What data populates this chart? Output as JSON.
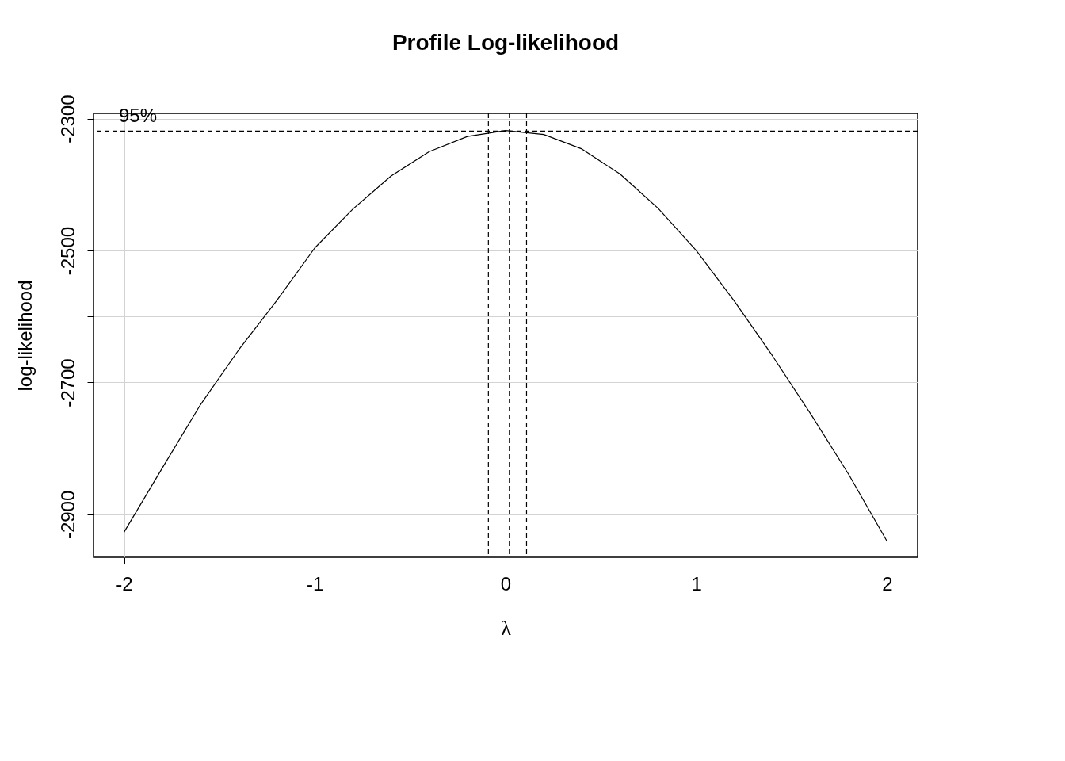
{
  "chart_data": {
    "type": "line",
    "title": "Profile Log-likelihood",
    "xlabel": "λ",
    "ylabel": "log-likelihood",
    "x": [
      -2.0,
      -1.8,
      -1.6,
      -1.4,
      -1.2,
      -1.0,
      -0.8,
      -0.6,
      -0.4,
      -0.2,
      0.0,
      0.2,
      0.4,
      0.6,
      0.8,
      1.0,
      1.2,
      1.4,
      1.6,
      1.8,
      2.0
    ],
    "series": [
      {
        "color": "#000000",
        "values": [
          -2927,
          -2830,
          -2734,
          -2651,
          -2576,
          -2496,
          -2437,
          -2387,
          -2350,
          -2327,
          -2318,
          -2324,
          -2346,
          -2384,
          -2436,
          -2500,
          -2577,
          -2660,
          -2748,
          -2840,
          -2941
        ]
      }
    ],
    "xlim": [
      -2.16,
      2.16
    ],
    "ylim": [
      -2965,
      -2292
    ],
    "xticks": [
      -2,
      -1,
      0,
      1,
      2
    ],
    "yticks": [
      -2300,
      {
        "value": -2400,
        "label": null
      },
      -2500,
      {
        "value": -2600,
        "label": null
      },
      -2700,
      {
        "value": -2800,
        "label": null
      },
      -2900
    ],
    "ref_lines": [
      {
        "axis": "y",
        "value": -2319,
        "color": "#000000",
        "line_style": "dashed"
      },
      {
        "axis": "x",
        "value": -0.09,
        "color": "#000000",
        "line_style": "dashed"
      },
      {
        "axis": "x",
        "value": 0.02,
        "color": "#000000",
        "line_style": "dashed"
      },
      {
        "axis": "x",
        "value": 0.11,
        "color": "#000000",
        "line_style": "dashed"
      }
    ],
    "annotations": [
      "95%"
    ],
    "grid": true,
    "marker": "none",
    "line_style": "solid"
  }
}
